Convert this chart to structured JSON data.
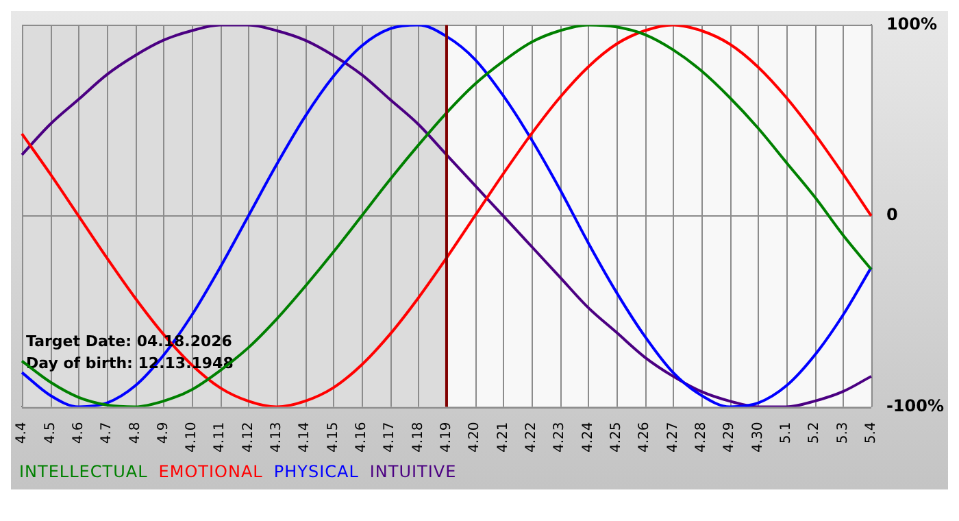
{
  "chart_data": {
    "type": "line",
    "categories": [
      "4.4",
      "4.5",
      "4.6",
      "4.7",
      "4.8",
      "4.9",
      "4.10",
      "4.11",
      "4.12",
      "4.13",
      "4.14",
      "4.15",
      "4.16",
      "4.17",
      "4.18",
      "4.19",
      "4.20",
      "4.21",
      "4.22",
      "4.23",
      "4.24",
      "4.25",
      "4.26",
      "4.27",
      "4.28",
      "4.29",
      "4.30",
      "5.1",
      "5.2",
      "5.3",
      "5.4"
    ],
    "series": [
      {
        "name": "INTELLECTUAL",
        "color": "#008000",
        "values": [
          -76,
          -87,
          -95,
          -99,
          -100,
          -97,
          -91,
          -81,
          -69,
          -54,
          -37,
          -19,
          0,
          19,
          37,
          54,
          69,
          81,
          91,
          97,
          100,
          99,
          95,
          87,
          76,
          62,
          46,
          28,
          10,
          -10,
          -28
        ]
      },
      {
        "name": "EMOTIONAL",
        "color": "#ff0000",
        "values": [
          43,
          22,
          0,
          -22,
          -43,
          -62,
          -78,
          -90,
          -97,
          -100,
          -97,
          -90,
          -78,
          -62,
          -43,
          -22,
          0,
          22,
          43,
          62,
          78,
          90,
          97,
          100,
          97,
          90,
          78,
          62,
          43,
          22,
          0
        ]
      },
      {
        "name": "PHYSICAL",
        "color": "#0000ff",
        "values": [
          -82,
          -94,
          -100,
          -98,
          -89,
          -73,
          -52,
          -27,
          0,
          27,
          52,
          73,
          89,
          98,
          100,
          94,
          82,
          63,
          40,
          14,
          -14,
          -40,
          -63,
          -82,
          -94,
          -100,
          -98,
          -89,
          -73,
          -52,
          -27
        ]
      },
      {
        "name": "INTUITIVE",
        "color": "#4b0082",
        "values": [
          32,
          48,
          61,
          74,
          84,
          92,
          97,
          100,
          100,
          97,
          92,
          84,
          74,
          61,
          48,
          32,
          16,
          0,
          -16,
          -32,
          -48,
          -61,
          -74,
          -84,
          -92,
          -97,
          -100,
          -100,
          -97,
          -92,
          -84
        ]
      }
    ],
    "ylim": [
      -100,
      100
    ],
    "yticks": [
      {
        "value": -100,
        "label": "-100%"
      },
      {
        "value": 0,
        "label": "0"
      },
      {
        "value": 100,
        "label": "100%"
      }
    ],
    "grid": true,
    "legend": "bottom left",
    "marker": "none",
    "ref_lines": [
      {
        "axis": "x",
        "value": "4.19",
        "color": "#800000"
      }
    ],
    "bands": [
      {
        "axis": "x",
        "from": "4.4",
        "to": "4.19",
        "color": "#dcdcdc"
      }
    ],
    "annotations": [
      "Target Date: 04.18.2026",
      "Day of birth: 12.13.1948"
    ]
  }
}
